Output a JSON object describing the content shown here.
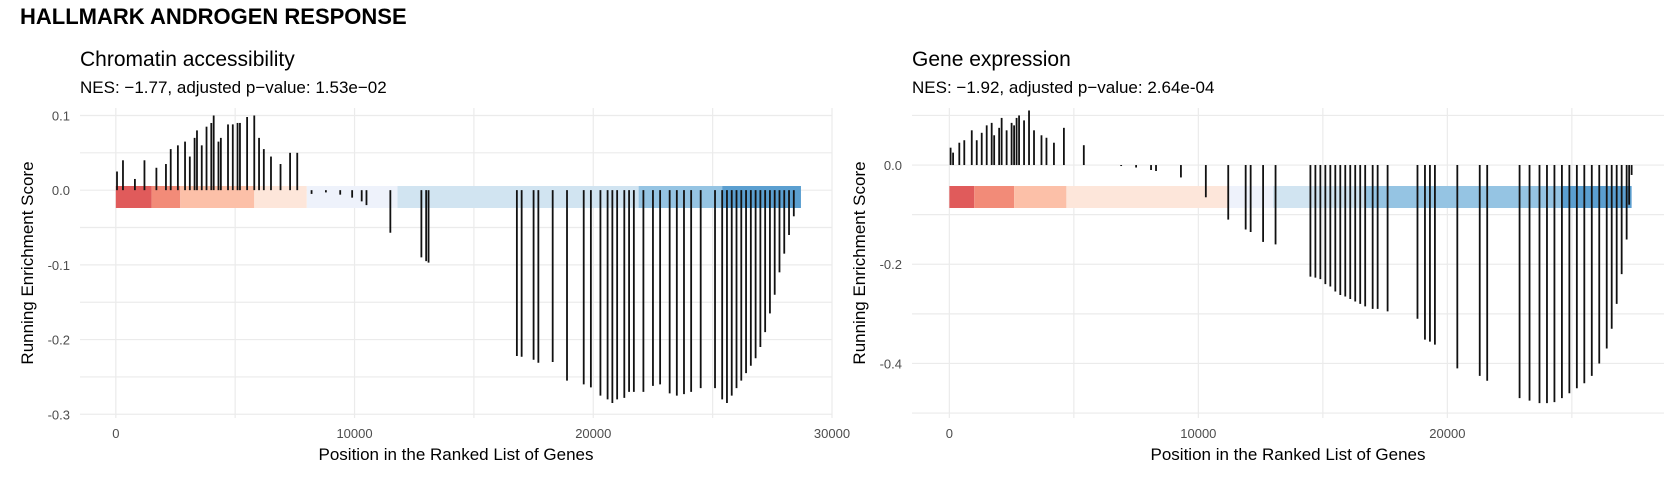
{
  "suptitle": "HALLMARK ANDROGEN RESPONSE",
  "colors": {
    "grid": "#ebebeb",
    "line": "#111111",
    "tick_text": "#4d4d4d",
    "rank_bands": [
      "#e05b5b",
      "#f28b78",
      "#fcc0a8",
      "#fde6da",
      "#eef2fb",
      "#d1e4f1",
      "#95c4e3",
      "#5b9fd0"
    ]
  },
  "chart_data": [
    {
      "type": "line",
      "title": "Chromatin accessibility",
      "subtitle": "NES: −1.77, adjusted p−value: 1.53e−02",
      "xlabel": "Position in the Ranked List of Genes",
      "ylabel": "Running Enrichment Score",
      "xlim": [
        -1500,
        30000
      ],
      "ylim": [
        -0.305,
        0.11
      ],
      "xticks": [
        0,
        10000,
        20000,
        30000
      ],
      "xtick_labels": [
        "0",
        "10000",
        "20000",
        "30000"
      ],
      "yticks": [
        0.1,
        0.0,
        -0.1,
        -0.2,
        -0.3
      ],
      "ytick_labels": [
        "0.1",
        "0.0",
        "-0.1",
        "-0.2",
        "-0.3"
      ],
      "grid": true,
      "n_genes": 28700,
      "rank_band_edges": [
        0,
        1500,
        2700,
        5800,
        8000,
        11800,
        21900,
        25400,
        28700
      ],
      "hits": [
        [
          50,
          0.025
        ],
        [
          300,
          0.04
        ],
        [
          800,
          0.015
        ],
        [
          1200,
          0.04
        ],
        [
          1700,
          0.03
        ],
        [
          2100,
          0.035
        ],
        [
          2300,
          0.055
        ],
        [
          2600,
          0.06
        ],
        [
          2900,
          0.065
        ],
        [
          3100,
          0.045
        ],
        [
          3300,
          0.07
        ],
        [
          3400,
          0.08
        ],
        [
          3600,
          0.06
        ],
        [
          3800,
          0.085
        ],
        [
          4000,
          0.09
        ],
        [
          4100,
          0.1
        ],
        [
          4300,
          0.065
        ],
        [
          4400,
          0.07
        ],
        [
          4700,
          0.088
        ],
        [
          4900,
          0.088
        ],
        [
          5100,
          0.09
        ],
        [
          5200,
          0.09
        ],
        [
          5500,
          0.098
        ],
        [
          5800,
          0.1
        ],
        [
          6000,
          0.07
        ],
        [
          6200,
          0.055
        ],
        [
          6500,
          0.045
        ],
        [
          6900,
          0.035
        ],
        [
          7300,
          0.05
        ],
        [
          7600,
          0.05
        ],
        [
          8200,
          -0.005
        ],
        [
          8800,
          -0.003
        ],
        [
          9400,
          -0.006
        ],
        [
          9900,
          -0.01
        ],
        [
          10300,
          -0.015
        ],
        [
          10500,
          -0.02
        ],
        [
          11500,
          -0.057
        ],
        [
          12800,
          -0.09
        ],
        [
          13000,
          -0.095
        ],
        [
          13100,
          -0.097
        ],
        [
          16800,
          -0.222
        ],
        [
          17000,
          -0.223
        ],
        [
          17500,
          -0.227
        ],
        [
          17700,
          -0.231
        ],
        [
          18300,
          -0.23
        ],
        [
          18900,
          -0.255
        ],
        [
          19600,
          -0.26
        ],
        [
          19900,
          -0.264
        ],
        [
          20300,
          -0.275
        ],
        [
          20600,
          -0.28
        ],
        [
          20800,
          -0.285
        ],
        [
          21000,
          -0.28
        ],
        [
          21300,
          -0.278
        ],
        [
          21500,
          -0.27
        ],
        [
          21700,
          -0.27
        ],
        [
          22100,
          -0.27
        ],
        [
          22500,
          -0.262
        ],
        [
          22800,
          -0.26
        ],
        [
          23200,
          -0.272
        ],
        [
          23500,
          -0.275
        ],
        [
          23800,
          -0.273
        ],
        [
          24100,
          -0.27
        ],
        [
          24500,
          -0.265
        ],
        [
          25100,
          -0.265
        ],
        [
          25400,
          -0.28
        ],
        [
          25600,
          -0.285
        ],
        [
          25800,
          -0.275
        ],
        [
          26000,
          -0.265
        ],
        [
          26200,
          -0.255
        ],
        [
          26400,
          -0.245
        ],
        [
          26600,
          -0.235
        ],
        [
          26800,
          -0.225
        ],
        [
          27000,
          -0.21
        ],
        [
          27200,
          -0.19
        ],
        [
          27400,
          -0.165
        ],
        [
          27600,
          -0.14
        ],
        [
          27800,
          -0.11
        ],
        [
          28000,
          -0.085
        ],
        [
          28200,
          -0.06
        ],
        [
          28400,
          -0.035
        ]
      ]
    },
    {
      "type": "line",
      "title": "Gene expression",
      "subtitle": "NES: −1.92, adjusted p−value: 2.64e-04",
      "xlabel": "Position in the Ranked List of Genes",
      "ylabel": "Running Enrichment Score",
      "xlim": [
        -1500,
        28700
      ],
      "ylim": [
        -0.51,
        0.115
      ],
      "xticks": [
        0,
        10000,
        20000
      ],
      "xtick_labels": [
        "0",
        "10000",
        "20000"
      ],
      "yticks": [
        0.0,
        -0.2,
        -0.4
      ],
      "ytick_labels": [
        "0.0",
        "-0.2",
        "-0.4"
      ],
      "grid": true,
      "n_genes": 27400,
      "rank_band_edges": [
        0,
        1000,
        2600,
        4700,
        11200,
        13000,
        16700,
        24600,
        27400
      ],
      "hits": [
        [
          50,
          0.035
        ],
        [
          150,
          0.025
        ],
        [
          400,
          0.045
        ],
        [
          600,
          0.05
        ],
        [
          900,
          0.07
        ],
        [
          1100,
          0.05
        ],
        [
          1300,
          0.065
        ],
        [
          1500,
          0.08
        ],
        [
          1700,
          0.085
        ],
        [
          1800,
          0.06
        ],
        [
          2000,
          0.075
        ],
        [
          2100,
          0.095
        ],
        [
          2300,
          0.07
        ],
        [
          2500,
          0.085
        ],
        [
          2600,
          0.08
        ],
        [
          2700,
          0.095
        ],
        [
          2800,
          0.1
        ],
        [
          3000,
          0.09
        ],
        [
          3200,
          0.11
        ],
        [
          3400,
          0.07
        ],
        [
          3700,
          0.06
        ],
        [
          3900,
          0.055
        ],
        [
          4200,
          0.045
        ],
        [
          4600,
          0.075
        ],
        [
          5400,
          0.04
        ],
        [
          6900,
          -0.002
        ],
        [
          7500,
          -0.005
        ],
        [
          8100,
          -0.01
        ],
        [
          8300,
          -0.012
        ],
        [
          9300,
          -0.025
        ],
        [
          10300,
          -0.065
        ],
        [
          11200,
          -0.11
        ],
        [
          11900,
          -0.13
        ],
        [
          12100,
          -0.135
        ],
        [
          12600,
          -0.155
        ],
        [
          13100,
          -0.16
        ],
        [
          14500,
          -0.225
        ],
        [
          14700,
          -0.227
        ],
        [
          14900,
          -0.23
        ],
        [
          15100,
          -0.24
        ],
        [
          15300,
          -0.245
        ],
        [
          15500,
          -0.255
        ],
        [
          15700,
          -0.262
        ],
        [
          15900,
          -0.265
        ],
        [
          16100,
          -0.27
        ],
        [
          16300,
          -0.275
        ],
        [
          16500,
          -0.28
        ],
        [
          16700,
          -0.285
        ],
        [
          17000,
          -0.29
        ],
        [
          17200,
          -0.29
        ],
        [
          17600,
          -0.295
        ],
        [
          18800,
          -0.31
        ],
        [
          19100,
          -0.352
        ],
        [
          19300,
          -0.356
        ],
        [
          19500,
          -0.362
        ],
        [
          20400,
          -0.41
        ],
        [
          21300,
          -0.425
        ],
        [
          21600,
          -0.435
        ],
        [
          22900,
          -0.47
        ],
        [
          23300,
          -0.475
        ],
        [
          23700,
          -0.48
        ],
        [
          24000,
          -0.48
        ],
        [
          24300,
          -0.478
        ],
        [
          24600,
          -0.47
        ],
        [
          24900,
          -0.46
        ],
        [
          25200,
          -0.45
        ],
        [
          25500,
          -0.44
        ],
        [
          25800,
          -0.425
        ],
        [
          26100,
          -0.4
        ],
        [
          26400,
          -0.37
        ],
        [
          26600,
          -0.33
        ],
        [
          26800,
          -0.28
        ],
        [
          27000,
          -0.22
        ],
        [
          27200,
          -0.15
        ],
        [
          27300,
          -0.08
        ],
        [
          27400,
          -0.02
        ]
      ]
    }
  ]
}
